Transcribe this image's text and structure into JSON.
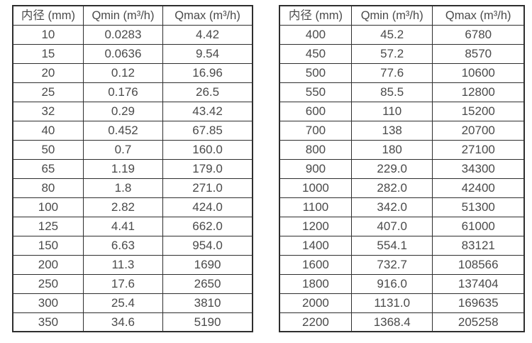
{
  "page": {
    "background_color": "#ffffff",
    "text_color": "#4a4a4a",
    "border_color": "#2e2e2e"
  },
  "tables": [
    {
      "name": "flow-rate-table-small-diameters",
      "headers": [
        "内径 (mm)",
        "Qmin (m³/h)",
        "Qmax (m³/h)"
      ],
      "rows": [
        [
          "10",
          "0.0283",
          "4.42"
        ],
        [
          "15",
          "0.0636",
          "9.54"
        ],
        [
          "20",
          "0.12",
          "16.96"
        ],
        [
          "25",
          "0.176",
          "26.5"
        ],
        [
          "32",
          "0.29",
          "43.42"
        ],
        [
          "40",
          "0.452",
          "67.85"
        ],
        [
          "50",
          "0.7",
          "160.0"
        ],
        [
          "65",
          "1.19",
          "179.0"
        ],
        [
          "80",
          "1.8",
          "271.0"
        ],
        [
          "100",
          "2.82",
          "424.0"
        ],
        [
          "125",
          "4.41",
          "662.0"
        ],
        [
          "150",
          "6.63",
          "954.0"
        ],
        [
          "200",
          "11.3",
          "1690"
        ],
        [
          "250",
          "17.6",
          "2650"
        ],
        [
          "300",
          "25.4",
          "3810"
        ],
        [
          "350",
          "34.6",
          "5190"
        ]
      ]
    },
    {
      "name": "flow-rate-table-large-diameters",
      "headers": [
        "内径 (mm)",
        "Qmin (m³/h)",
        "Qmax (m³/h)"
      ],
      "rows": [
        [
          "400",
          "45.2",
          "6780"
        ],
        [
          "450",
          "57.2",
          "8570"
        ],
        [
          "500",
          "77.6",
          "10600"
        ],
        [
          "550",
          "85.5",
          "12800"
        ],
        [
          "600",
          "110",
          "15200"
        ],
        [
          "700",
          "138",
          "20700"
        ],
        [
          "800",
          "180",
          "27100"
        ],
        [
          "900",
          "229.0",
          "34300"
        ],
        [
          "1000",
          "282.0",
          "42400"
        ],
        [
          "1100",
          "342.0",
          "51300"
        ],
        [
          "1200",
          "407.0",
          "61000"
        ],
        [
          "1400",
          "554.1",
          "83121"
        ],
        [
          "1600",
          "732.7",
          "108566"
        ],
        [
          "1800",
          "916.0",
          "137404"
        ],
        [
          "2000",
          "1131.0",
          "169635"
        ],
        [
          "2200",
          "1368.4",
          "205258"
        ]
      ]
    }
  ]
}
